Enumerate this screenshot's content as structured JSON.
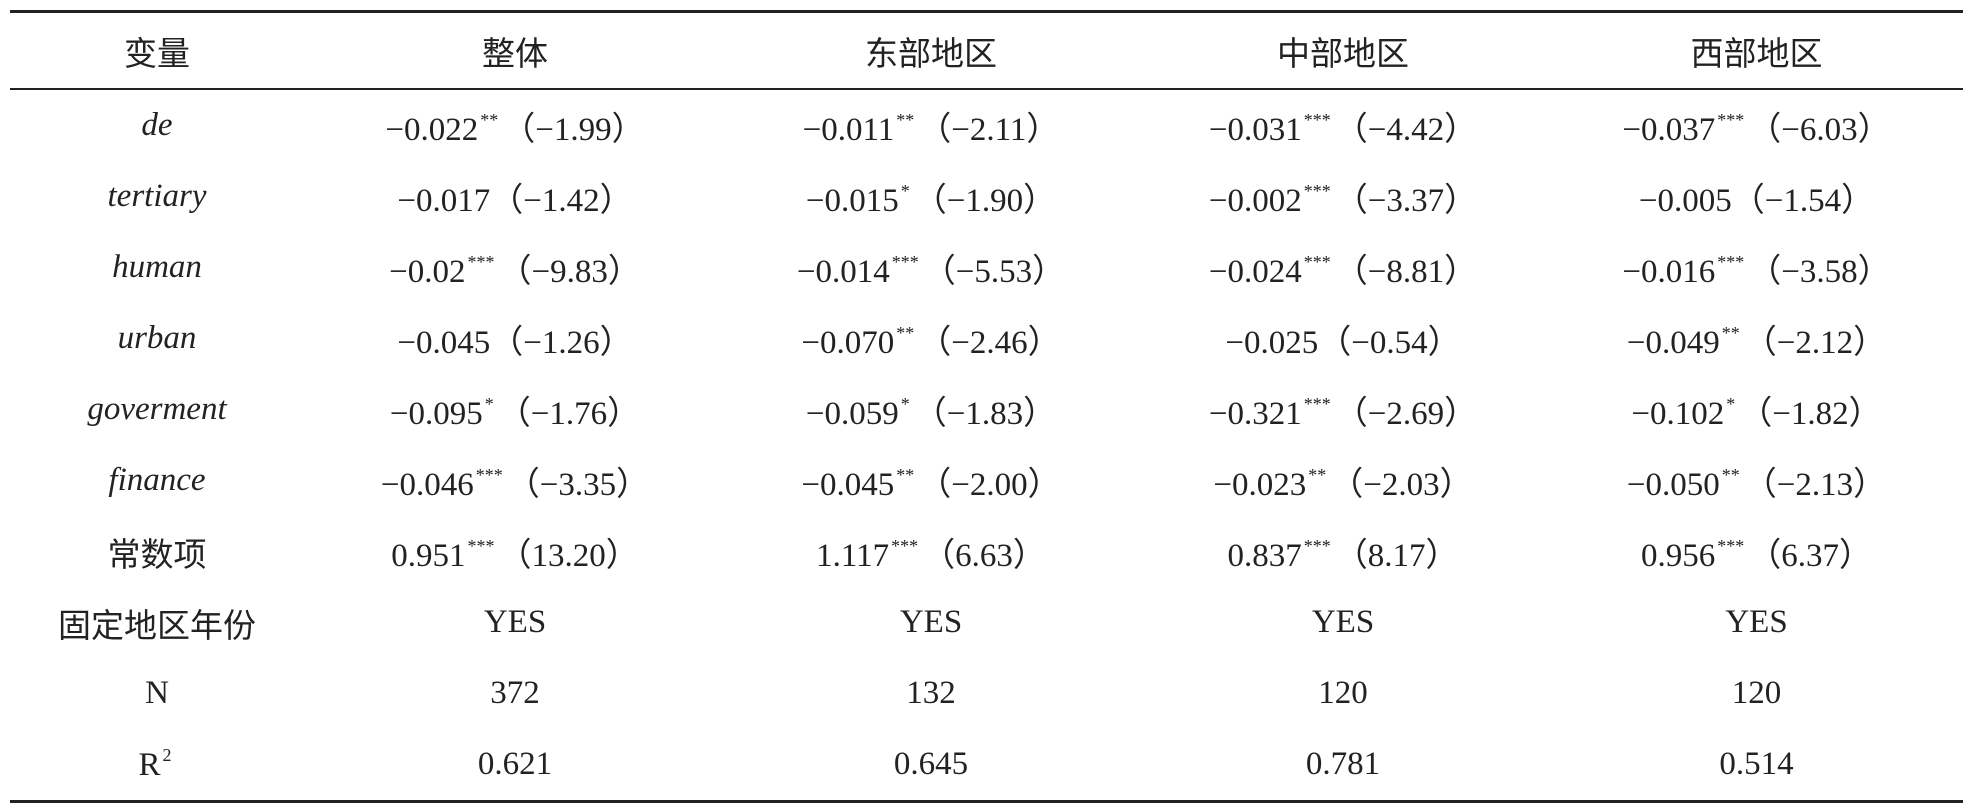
{
  "table": {
    "header": [
      "变量",
      "整体",
      "东部地区",
      "中部地区",
      "西部地区"
    ],
    "rows": [
      {
        "label": "de",
        "italic": true,
        "cells": [
          {
            "coef": "−0.022",
            "stars": "**",
            "t": "（−1.99）"
          },
          {
            "coef": "−0.011",
            "stars": "**",
            "t": "（−2.11）"
          },
          {
            "coef": "−0.031",
            "stars": "***",
            "t": "（−4.42）"
          },
          {
            "coef": "−0.037",
            "stars": "***",
            "t": "（−6.03）"
          }
        ]
      },
      {
        "label": "tertiary",
        "italic": true,
        "cells": [
          {
            "coef": "−0.017",
            "t": "（−1.42）"
          },
          {
            "coef": "−0.015",
            "stars": "*",
            "t": "（−1.90）"
          },
          {
            "coef": "−0.002",
            "stars": "***",
            "t": "（−3.37）"
          },
          {
            "coef": "−0.005",
            "t": "（−1.54）"
          }
        ]
      },
      {
        "label": "human",
        "italic": true,
        "cells": [
          {
            "coef": "−0.02",
            "stars": "***",
            "t": "（−9.83）"
          },
          {
            "coef": "−0.014",
            "stars": "***",
            "t": "（−5.53）"
          },
          {
            "coef": "−0.024",
            "stars": "***",
            "t": "（−8.81）"
          },
          {
            "coef": "−0.016",
            "stars": "***",
            "t": "（−3.58）"
          }
        ]
      },
      {
        "label": "urban",
        "italic": true,
        "cells": [
          {
            "coef": "−0.045",
            "t": "（−1.26）"
          },
          {
            "coef": "−0.070",
            "stars": "**",
            "t": "（−2.46）"
          },
          {
            "coef": "−0.025",
            "t": "（−0.54）"
          },
          {
            "coef": "−0.049",
            "stars": "**",
            "t": "（−2.12）"
          }
        ]
      },
      {
        "label": "goverment",
        "italic": true,
        "cells": [
          {
            "coef": "−0.095",
            "stars": "*",
            "t": "（−1.76）"
          },
          {
            "coef": "−0.059",
            "stars": "*",
            "t": "（−1.83）"
          },
          {
            "coef": "−0.321",
            "stars": "***",
            "t": "（−2.69）"
          },
          {
            "coef": "−0.102",
            "stars": "*",
            "t": "（−1.82）"
          }
        ]
      },
      {
        "label": "finance",
        "italic": true,
        "cells": [
          {
            "coef": "−0.046",
            "stars": "***",
            "t": "（−3.35）"
          },
          {
            "coef": "−0.045",
            "stars": "**",
            "t": "（−2.00）"
          },
          {
            "coef": "−0.023",
            "stars": "**",
            "t": "（−2.03）"
          },
          {
            "coef": "−0.050",
            "stars": "**",
            "t": "（−2.13）"
          }
        ]
      },
      {
        "label": "常数项",
        "cells": [
          {
            "coef": "0.951",
            "stars": "***",
            "t": "（13.20）"
          },
          {
            "coef": "1.117",
            "stars": "***",
            "t": "（6.63）"
          },
          {
            "coef": "0.837",
            "stars": "***",
            "t": "（8.17）"
          },
          {
            "coef": "0.956",
            "stars": "***",
            "t": "（6.37）"
          }
        ]
      },
      {
        "label": "固定地区年份",
        "cells": [
          {
            "coef": "YES"
          },
          {
            "coef": "YES"
          },
          {
            "coef": "YES"
          },
          {
            "coef": "YES"
          }
        ]
      },
      {
        "label": "N",
        "cells": [
          {
            "coef": "372"
          },
          {
            "coef": "132"
          },
          {
            "coef": "120"
          },
          {
            "coef": "120"
          }
        ]
      },
      {
        "label": "R",
        "label_sup": "2",
        "cells": [
          {
            "coef": "0.621"
          },
          {
            "coef": "0.645"
          },
          {
            "coef": "0.781"
          },
          {
            "coef": "0.514"
          }
        ]
      }
    ]
  }
}
